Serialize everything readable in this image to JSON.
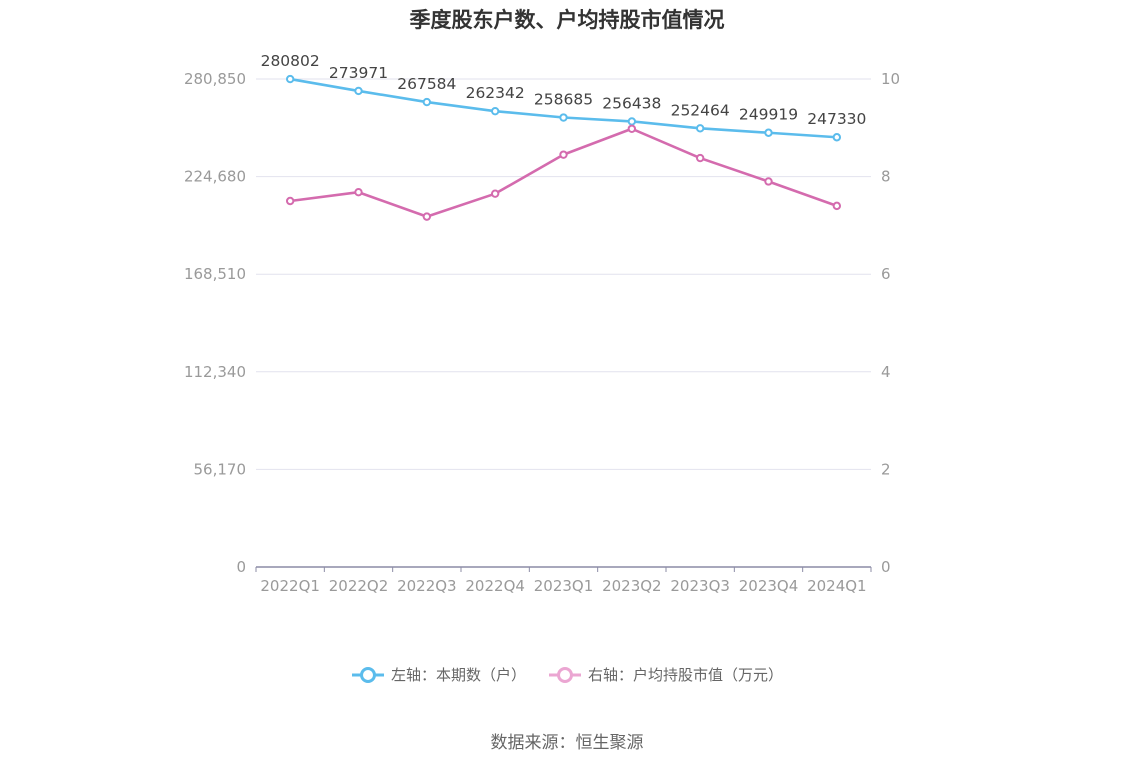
{
  "title": "季度股东户数、户均持股市值情况",
  "source": "数据来源：恒生聚源",
  "colors": {
    "left_series": "#5bbcec",
    "right_series": "#d46bae",
    "grid": "#e2e2ee",
    "axis": "#8c8ca6"
  },
  "chart_data": {
    "type": "line",
    "categories": [
      "2022Q1",
      "2022Q2",
      "2022Q3",
      "2022Q4",
      "2023Q1",
      "2023Q2",
      "2023Q3",
      "2023Q4",
      "2024Q1"
    ],
    "y_left": {
      "ticks": [
        "0",
        "56,170",
        "112,340",
        "168,510",
        "224,680",
        "280,850"
      ],
      "range": [
        0,
        280850
      ]
    },
    "y_right": {
      "ticks": [
        "0",
        "2",
        "4",
        "6",
        "8",
        "10"
      ],
      "range": [
        0,
        10
      ]
    },
    "grid": true,
    "legend_position": "bottom",
    "series": [
      {
        "name": "左轴：本期数（户）",
        "axis": "left",
        "values": [
          280802,
          273971,
          267584,
          262342,
          258685,
          256438,
          252464,
          249919,
          247330
        ],
        "labels": [
          "280802",
          "273971",
          "267584",
          "262342",
          "258685",
          "256438",
          "252464",
          "249919",
          "247330"
        ]
      },
      {
        "name": "右轴：户均持股市值（万元）",
        "axis": "right",
        "values": [
          7.5,
          7.68,
          7.18,
          7.65,
          8.45,
          8.98,
          8.38,
          7.9,
          7.4
        ]
      }
    ]
  }
}
